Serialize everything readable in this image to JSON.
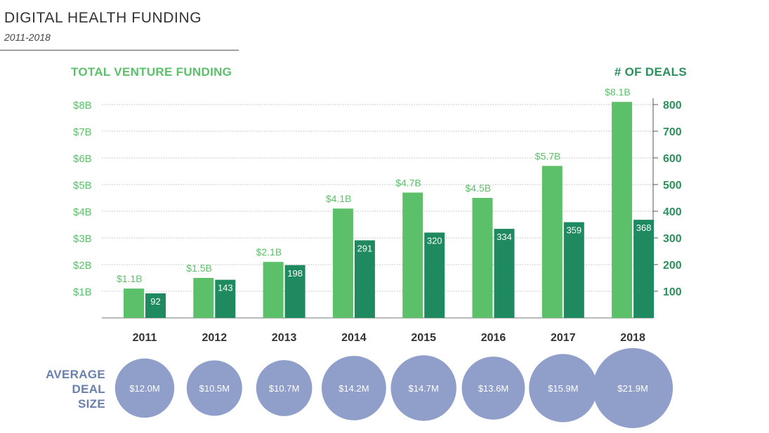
{
  "header": {
    "title": "DIGITAL HEALTH FUNDING",
    "subtitle": "2011-2018"
  },
  "chart_data": {
    "type": "bar",
    "categories": [
      "2011",
      "2012",
      "2013",
      "2014",
      "2015",
      "2016",
      "2017",
      "2018"
    ],
    "left_axis": {
      "title": "TOTAL VENTURE FUNDING",
      "ticks": [
        "$1B",
        "$2B",
        "$3B",
        "$4B",
        "$5B",
        "$6B",
        "$7B",
        "$8B"
      ],
      "ylim": [
        0,
        8
      ]
    },
    "right_axis": {
      "title": "# OF DEALS",
      "ticks": [
        "100",
        "200",
        "300",
        "400",
        "500",
        "600",
        "700",
        "800"
      ],
      "ylim": [
        0,
        800
      ]
    },
    "series": [
      {
        "values": [
          1.1,
          1.5,
          2.1,
          4.1,
          4.7,
          4.5,
          5.7,
          8.1
        ],
        "labels": [
          "$1.1B",
          "$1.5B",
          "$2.1B",
          "$4.1B",
          "$4.7B",
          "$4.5B",
          "$5.7B",
          "$8.1B"
        ],
        "axis": "left",
        "color": "#5cc06b"
      },
      {
        "values": [
          92,
          143,
          198,
          291,
          320,
          334,
          359,
          368
        ],
        "labels": [
          "92",
          "143",
          "198",
          "291",
          "320",
          "334",
          "359",
          "368"
        ],
        "axis": "right",
        "color": "#1f8a5f"
      }
    ],
    "average_deal_size": {
      "label": [
        "AVERAGE",
        "DEAL",
        "SIZE"
      ],
      "values": [
        12.0,
        10.5,
        10.7,
        14.2,
        14.7,
        13.6,
        15.9,
        21.9
      ],
      "labels": [
        "$12.0M",
        "$10.5M",
        "$10.7M",
        "$14.2M",
        "$14.7M",
        "$13.6M",
        "$15.9M",
        "$21.9M"
      ],
      "color": "#8f9fc9"
    },
    "grid": true,
    "legend": "none"
  }
}
